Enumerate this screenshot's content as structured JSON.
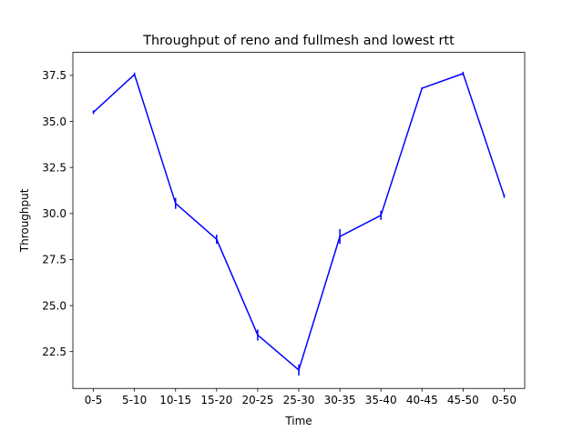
{
  "chart_data": {
    "type": "line",
    "title": "Throughput of reno and fullmesh and lowest rtt",
    "xlabel": "Time",
    "ylabel": "Throughput",
    "categories": [
      "0-5",
      "5-10",
      "10-15",
      "15-20",
      "20-25",
      "25-30",
      "30-35",
      "35-40",
      "40-45",
      "45-50",
      "0-50"
    ],
    "series": [
      {
        "values": [
          35.5,
          37.55,
          30.55,
          28.6,
          23.4,
          21.5,
          28.75,
          29.9,
          36.8,
          37.6,
          30.95
        ],
        "errors": [
          0.1,
          0.1,
          0.3,
          0.25,
          0.3,
          0.3,
          0.4,
          0.25,
          0.05,
          0.1,
          0.1
        ],
        "color": "#0000ff"
      }
    ],
    "ylim": [
      20.5,
      38.75
    ],
    "yticks": [
      "22.5",
      "25.0",
      "27.5",
      "30.0",
      "32.5",
      "35.0",
      "37.5"
    ],
    "grid": false,
    "legend": "none"
  }
}
